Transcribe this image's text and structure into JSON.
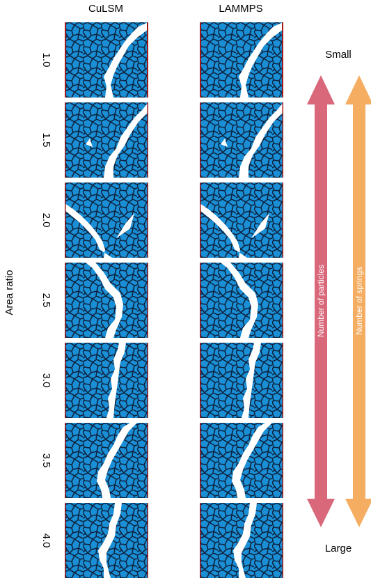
{
  "columns": [
    "CuLSM",
    "LAMMPS"
  ],
  "y_axis_label": "Area ratio",
  "rows": [
    "1.0",
    "1.5",
    "2.0",
    "2.5",
    "3.0",
    "3.5",
    "4.0"
  ],
  "scale_top": "Small",
  "scale_bottom": "Large",
  "arrows": [
    {
      "label": "Number of particles",
      "color": "#d9687a"
    },
    {
      "label": "Number of springs",
      "color": "#f5ad62"
    }
  ],
  "colors": {
    "cell_fill": "#1a8fd6",
    "cell_edge": "#0d2440",
    "wall": "#a01818",
    "crack": "#ffffff"
  }
}
